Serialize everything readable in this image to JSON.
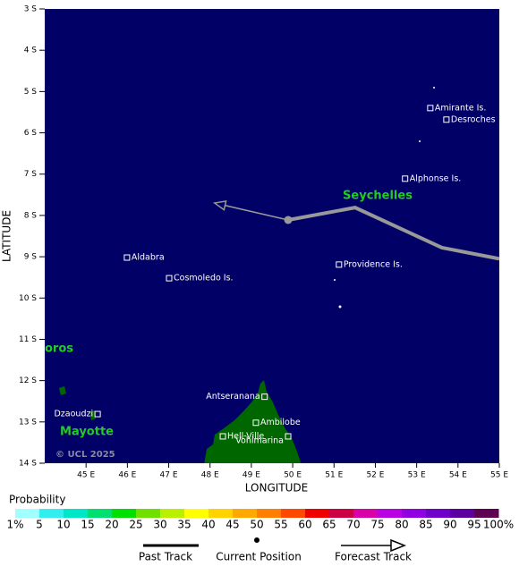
{
  "map": {
    "axes": {
      "x_label": "LONGITUDE",
      "y_label": "LATITUDE",
      "xlim": [
        44,
        55
      ],
      "ylim": [
        -14,
        -3
      ],
      "xticks": [
        {
          "value": 45,
          "label": "45 E"
        },
        {
          "value": 46,
          "label": "46 E"
        },
        {
          "value": 47,
          "label": "47 E"
        },
        {
          "value": 48,
          "label": "48 E"
        },
        {
          "value": 49,
          "label": "49 E"
        },
        {
          "value": 50,
          "label": "50 E"
        },
        {
          "value": 51,
          "label": "51 E"
        },
        {
          "value": 52,
          "label": "52 E"
        },
        {
          "value": 53,
          "label": "53 E"
        },
        {
          "value": 54,
          "label": "54 E"
        },
        {
          "value": 55,
          "label": "55 E"
        }
      ],
      "yticks": [
        {
          "value": -3,
          "label": "3 S"
        },
        {
          "value": -4,
          "label": "4 S"
        },
        {
          "value": -5,
          "label": "5 S"
        },
        {
          "value": -6,
          "label": "6 S"
        },
        {
          "value": -7,
          "label": "7 S"
        },
        {
          "value": -8,
          "label": "8 S"
        },
        {
          "value": -9,
          "label": "9 S"
        },
        {
          "value": -10,
          "label": "10 S"
        },
        {
          "value": -11,
          "label": "11 S"
        },
        {
          "value": -12,
          "label": "12 S"
        },
        {
          "value": -13,
          "label": "13 S"
        },
        {
          "value": -14,
          "label": "14 S"
        }
      ]
    },
    "track": {
      "past": {
        "lon": [
          55.0,
          53.61,
          51.51,
          49.89
        ],
        "lat": [
          -9.05,
          -8.78,
          -7.81,
          -8.11
        ]
      },
      "current": {
        "lon": 49.89,
        "lat": -8.11
      },
      "forecast": {
        "lon": [
          49.89,
          48.11
        ],
        "lat": [
          -8.11,
          -7.7
        ]
      }
    },
    "places": [
      {
        "name": "Amirante Is.",
        "lon": 53.33,
        "lat": -5.4
      },
      {
        "name": "Desroches",
        "lon": 53.72,
        "lat": -5.68
      },
      {
        "name": "Alphonse Is.",
        "lon": 52.72,
        "lat": -7.11
      },
      {
        "name": "Providence Is.",
        "lon": 51.12,
        "lat": -9.19
      },
      {
        "name": "Aldabra",
        "lon": 45.99,
        "lat": -9.02
      },
      {
        "name": "Cosmoledo Is.",
        "lon": 47.01,
        "lat": -9.52
      },
      {
        "name": "Antseranana",
        "lon": 49.32,
        "lat": -12.39
      },
      {
        "name": "Ambilobe",
        "lon": 49.11,
        "lat": -13.02
      },
      {
        "name": "Hell-Ville",
        "lon": 48.31,
        "lat": -13.35
      },
      {
        "name": "Vohimarina",
        "lon": 49.89,
        "lat": -13.35
      },
      {
        "name": "Dzaoudzi",
        "lon": 45.28,
        "lat": -12.81
      }
    ],
    "regions": [
      "Seychelles",
      "Mayotte",
      "oros"
    ],
    "copyright": "© UCL 2025",
    "legend": {
      "title": "Probability",
      "labels": [
        "1%",
        "5",
        "10",
        "15",
        "20",
        "25",
        "30",
        "35",
        "40",
        "45",
        "50",
        "55",
        "60",
        "65",
        "70",
        "75",
        "80",
        "85",
        "90",
        "95",
        "100%"
      ],
      "colors": [
        "#a0ffff",
        "#33eeee",
        "#00e6c8",
        "#00e070",
        "#00e000",
        "#70e000",
        "#b8f000",
        "#ffff00",
        "#ffd200",
        "#ffa800",
        "#ff8000",
        "#ff4800",
        "#ee0000",
        "#cc0044",
        "#d800a8",
        "#b800e0",
        "#9000e0",
        "#7000c8",
        "#5c00a0",
        "#600050"
      ]
    },
    "track_legend": {
      "past": "Past Track",
      "current": "Current Position",
      "forecast": "Forecast Track"
    }
  }
}
